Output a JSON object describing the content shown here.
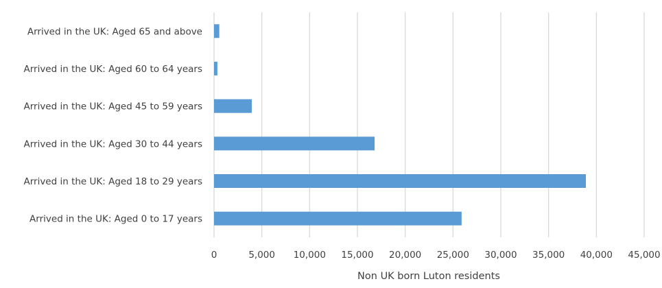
{
  "chart_data": {
    "type": "bar",
    "orientation": "horizontal",
    "categories": [
      "Arrived in the UK: Aged 65 and above",
      "Arrived in the UK: Aged 60 to 64 years",
      "Arrived in the UK: Aged 45 to 59 years",
      "Arrived in the UK: Aged 30 to 44 years",
      "Arrived in the UK: Aged 18 to 29 years",
      "Arrived in the UK: Aged 0 to 17 years"
    ],
    "values": [
      550,
      350,
      3950,
      16800,
      38900,
      25900
    ],
    "xlabel": "Non UK born Luton residents",
    "ylabel": "",
    "xlim": [
      0,
      45000
    ],
    "x_ticks": [
      0,
      5000,
      10000,
      15000,
      20000,
      25000,
      30000,
      35000,
      40000,
      45000
    ],
    "x_tick_labels": [
      "0",
      "5,000",
      "10,000",
      "15,000",
      "20,000",
      "25,000",
      "30,000",
      "35,000",
      "40,000",
      "45,000"
    ],
    "grid": "vertical",
    "legend": "none",
    "bar_color": "#5B9BD5",
    "grid_color": "#D9D9D9",
    "text_color": "#404040"
  }
}
